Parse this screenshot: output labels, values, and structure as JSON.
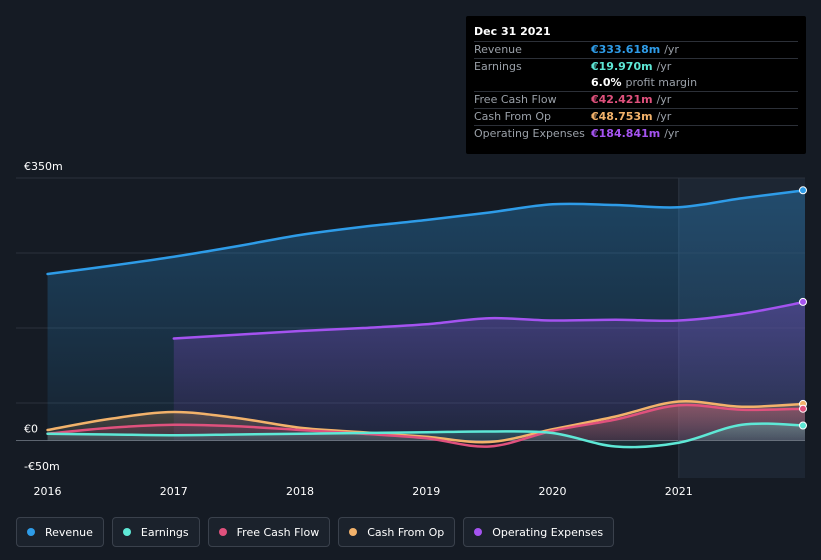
{
  "tooltip": {
    "date": "Dec 31 2021",
    "rows": [
      {
        "name": "Revenue",
        "value": "€333.618m",
        "unit": "/yr",
        "color": "#2e9ce8"
      },
      {
        "name": "Earnings",
        "value": "€19.970m",
        "unit": "/yr",
        "color": "#5ee8d6"
      },
      {
        "name": "",
        "value": "6.0%",
        "unit": "profit margin",
        "color": "#ffffff"
      },
      {
        "name": "Free Cash Flow",
        "value": "€42.421m",
        "unit": "/yr",
        "color": "#e0517d"
      },
      {
        "name": "Cash From Op",
        "value": "€48.753m",
        "unit": "/yr",
        "color": "#f2b26b"
      },
      {
        "name": "Operating Expenses",
        "value": "€184.841m",
        "unit": "/yr",
        "color": "#a453f0"
      }
    ]
  },
  "legend": {
    "items": [
      {
        "label": "Revenue",
        "color": "#2e9ce8"
      },
      {
        "label": "Earnings",
        "color": "#5ee8d6"
      },
      {
        "label": "Free Cash Flow",
        "color": "#e0517d"
      },
      {
        "label": "Cash From Op",
        "color": "#f2b26b"
      },
      {
        "label": "Operating Expenses",
        "color": "#a453f0"
      }
    ]
  },
  "chart_data": {
    "type": "area",
    "title": "",
    "xlabel": "",
    "ylabel": "",
    "y_tick_labels": [
      "€350m",
      "€0",
      "-€50m"
    ],
    "ylim": [
      -50,
      350
    ],
    "x_tick_labels": [
      "2016",
      "2017",
      "2018",
      "2019",
      "2020",
      "2021"
    ],
    "x_ticks": [
      2016,
      2017,
      2018,
      2019,
      2020,
      2021
    ],
    "xlim": [
      2015.75,
      2022.0
    ],
    "highlight_start": 2021.0,
    "grid": true,
    "legend_position": "bottom",
    "series": [
      {
        "name": "Revenue",
        "color": "#2e9ce8",
        "x": [
          2016.0,
          2016.5,
          2017.0,
          2017.5,
          2018.0,
          2018.5,
          2019.0,
          2019.5,
          2020.0,
          2020.5,
          2021.0,
          2021.5,
          2022.0
        ],
        "values": [
          222,
          233,
          245,
          259,
          274,
          285,
          294,
          304,
          315,
          314,
          311,
          323,
          333.6
        ]
      },
      {
        "name": "Operating Expenses",
        "color": "#a453f0",
        "x": [
          2017.0,
          2017.5,
          2018.0,
          2018.5,
          2019.0,
          2019.5,
          2020.0,
          2020.5,
          2021.0,
          2021.5,
          2022.0
        ],
        "values": [
          136,
          141,
          146,
          150,
          155,
          163,
          160,
          161,
          160,
          169,
          184.8
        ]
      },
      {
        "name": "Cash From Op",
        "color": "#f2b26b",
        "x": [
          2016.0,
          2016.5,
          2017.0,
          2017.5,
          2018.0,
          2018.5,
          2019.0,
          2019.5,
          2020.0,
          2020.5,
          2021.0,
          2021.5,
          2022.0
        ],
        "values": [
          14,
          29,
          38,
          30,
          17,
          11,
          5,
          -2,
          15,
          32,
          52,
          45,
          48.8
        ]
      },
      {
        "name": "Free Cash Flow",
        "color": "#e0517d",
        "x": [
          2016.0,
          2016.5,
          2017.0,
          2017.5,
          2018.0,
          2018.5,
          2019.0,
          2019.5,
          2020.0,
          2020.5,
          2021.0,
          2021.5,
          2022.0
        ],
        "values": [
          9,
          17,
          21,
          19,
          14,
          9,
          3,
          -8,
          13,
          28,
          47,
          41,
          42.4
        ]
      },
      {
        "name": "Earnings",
        "color": "#5ee8d6",
        "x": [
          2016.0,
          2016.5,
          2017.0,
          2017.5,
          2018.0,
          2018.5,
          2019.0,
          2019.5,
          2020.0,
          2020.5,
          2021.0,
          2021.5,
          2022.0
        ],
        "values": [
          9,
          8,
          7,
          8,
          9,
          10,
          11,
          12,
          10,
          -8,
          -3,
          21,
          20.0
        ]
      }
    ]
  }
}
